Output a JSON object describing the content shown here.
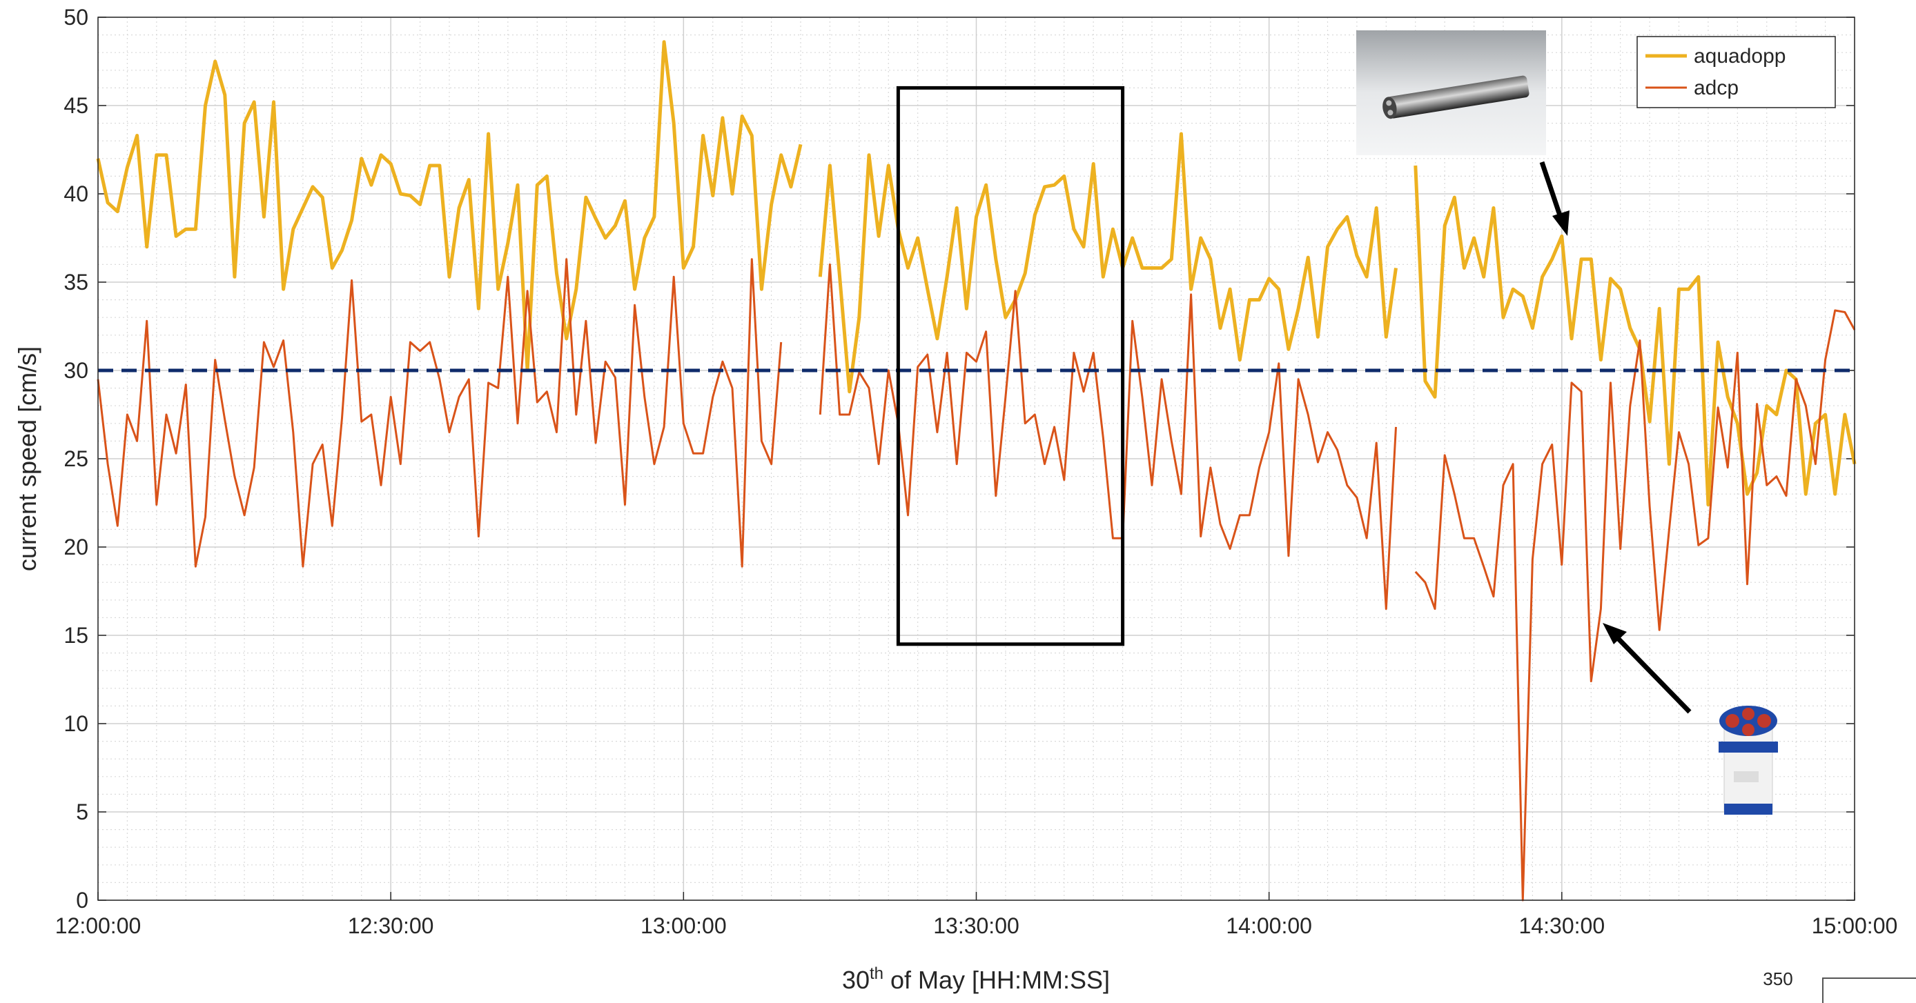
{
  "chart_data": {
    "type": "line",
    "ylabel": "current speed [cm/s]",
    "xlabel": {
      "text": "30",
      "sup": "th",
      "rest": " of May [HH:MM:SS]"
    },
    "xlim": [
      "12:00:00",
      "15:00:00"
    ],
    "xticks": [
      "12:00:00",
      "12:30:00",
      "13:00:00",
      "13:30:00",
      "14:00:00",
      "14:30:00",
      "15:00:00"
    ],
    "ylim": [
      0,
      50
    ],
    "yticks": [
      0,
      5,
      10,
      15,
      20,
      25,
      30,
      35,
      40,
      45,
      50
    ],
    "grid": true,
    "minor_grid": true,
    "legend": "upper right",
    "reference_line": {
      "y": 30,
      "color": "#0f2b6b"
    },
    "highlight": {
      "x": [
        "13:22:00",
        "13:45:00"
      ],
      "y": [
        14.5,
        46
      ]
    },
    "page_number": "350",
    "x": [
      "12:00:00",
      "12:01:00",
      "12:02:00",
      "12:03:00",
      "12:04:00",
      "12:05:00",
      "12:06:00",
      "12:07:00",
      "12:08:00",
      "12:09:00",
      "12:10:00",
      "12:11:00",
      "12:12:00",
      "12:13:00",
      "12:14:00",
      "12:15:00",
      "12:16:00",
      "12:17:00",
      "12:18:00",
      "12:19:00",
      "12:20:00",
      "12:21:00",
      "12:22:00",
      "12:23:00",
      "12:24:00",
      "12:25:00",
      "12:26:00",
      "12:27:00",
      "12:28:00",
      "12:29:00",
      "12:30:00",
      "12:31:00",
      "12:32:00",
      "12:33:00",
      "12:34:00",
      "12:35:00",
      "12:36:00",
      "12:37:00",
      "12:38:00",
      "12:39:00",
      "12:40:00",
      "12:41:00",
      "12:42:00",
      "12:43:00",
      "12:44:00",
      "12:45:00",
      "12:46:00",
      "12:47:00",
      "12:48:00",
      "12:49:00",
      "12:50:00",
      "12:51:00",
      "12:52:00",
      "12:53:00",
      "12:54:00",
      "12:55:00",
      "12:56:00",
      "12:57:00",
      "12:58:00",
      "12:59:00",
      "13:00:00",
      "13:01:00",
      "13:02:00",
      "13:03:00",
      "13:04:00",
      "13:05:00",
      "13:06:00",
      "13:07:00",
      "13:08:00",
      "13:09:00",
      "13:10:00",
      "13:11:00",
      "13:12:00",
      "13:13:00",
      "13:14:00",
      "13:15:00",
      "13:16:00",
      "13:17:00",
      "13:18:00",
      "13:19:00",
      "13:20:00",
      "13:21:00",
      "13:22:00",
      "13:23:00",
      "13:24:00",
      "13:25:00",
      "13:26:00",
      "13:27:00",
      "13:28:00",
      "13:29:00",
      "13:30:00",
      "13:31:00",
      "13:32:00",
      "13:33:00",
      "13:34:00",
      "13:35:00",
      "13:36:00",
      "13:37:00",
      "13:38:00",
      "13:39:00",
      "13:40:00",
      "13:41:00",
      "13:42:00",
      "13:43:00",
      "13:44:00",
      "13:45:00",
      "13:46:00",
      "13:47:00",
      "13:48:00",
      "13:49:00",
      "13:50:00",
      "13:51:00",
      "13:52:00",
      "13:53:00",
      "13:54:00",
      "13:55:00",
      "13:56:00",
      "13:57:00",
      "13:58:00",
      "13:59:00",
      "14:00:00",
      "14:01:00",
      "14:02:00",
      "14:03:00",
      "14:04:00",
      "14:05:00",
      "14:06:00",
      "14:07:00",
      "14:08:00",
      "14:09:00",
      "14:10:00",
      "14:11:00",
      "14:12:00",
      "14:13:00",
      "14:14:00",
      "14:15:00",
      "14:16:00",
      "14:17:00",
      "14:18:00",
      "14:19:00",
      "14:20:00",
      "14:21:00",
      "14:22:00",
      "14:23:00",
      "14:24:00",
      "14:25:00",
      "14:26:00",
      "14:27:00",
      "14:28:00",
      "14:29:00",
      "14:30:00",
      "14:31:00",
      "14:32:00",
      "14:33:00",
      "14:34:00",
      "14:35:00",
      "14:36:00",
      "14:37:00",
      "14:38:00",
      "14:39:00",
      "14:40:00",
      "14:41:00",
      "14:42:00",
      "14:43:00",
      "14:44:00",
      "14:45:00",
      "14:46:00",
      "14:47:00",
      "14:48:00",
      "14:49:00",
      "14:50:00",
      "14:51:00",
      "14:52:00",
      "14:53:00",
      "14:54:00",
      "14:55:00",
      "14:56:00",
      "14:57:00",
      "14:58:00",
      "14:59:00",
      "15:00:00"
    ],
    "series": [
      {
        "name": "aquadopp",
        "color": "#edb120",
        "values": [
          42,
          39.5,
          39,
          41.5,
          43.3,
          37,
          42.2,
          42.2,
          37.6,
          38,
          38,
          45,
          47.5,
          45.6,
          35.3,
          44,
          45.2,
          38.7,
          45.2,
          34.6,
          38,
          39.2,
          40.4,
          39.8,
          35.8,
          36.8,
          38.5,
          42,
          40.5,
          42.2,
          41.7,
          40,
          39.9,
          39.4,
          41.6,
          41.6,
          35.3,
          39.2,
          40.8,
          33.5,
          43.4,
          34.6,
          37.2,
          40.5,
          30,
          40.5,
          41,
          35.5,
          31.8,
          34.6,
          39.8,
          38.6,
          37.5,
          38.2,
          39.6,
          34.6,
          37.5,
          38.7,
          48.6,
          44,
          35.8,
          37,
          43.3,
          39.9,
          44.3,
          40,
          44.4,
          43.3,
          34.6,
          39.4,
          42.2,
          40.4,
          42.8,
          null,
          35.3,
          41.6,
          35.3,
          28.8,
          33,
          42.2,
          37.6,
          41.6,
          38,
          35.8,
          37.5,
          34.6,
          31.8,
          35.3,
          39.2,
          33.5,
          38.7,
          40.5,
          36.3,
          33,
          34,
          35.5,
          38.8,
          40.4,
          40.5,
          41,
          38,
          37,
          41.7,
          35.3,
          38,
          35.8,
          37.5,
          35.8,
          35.8,
          35.8,
          36.3,
          43.4,
          34.6,
          37.5,
          36.3,
          32.4,
          34.6,
          30.6,
          34,
          34,
          35.2,
          34.6,
          31.2,
          33.5,
          36.4,
          31.9,
          37,
          38,
          38.7,
          36.5,
          35.3,
          39.2,
          31.9,
          35.8,
          null,
          41.6,
          29.4,
          28.5,
          38.2,
          39.8,
          35.8,
          37.5,
          35.3,
          39.2,
          33,
          34.6,
          34.2,
          32.4,
          35.3,
          36.3,
          37.6,
          31.8,
          36.3,
          36.3,
          30.6,
          35.2,
          34.6,
          32.4,
          31.2,
          27.1,
          33.5,
          24.7,
          34.6,
          34.6,
          35.3,
          22.4,
          31.6,
          28.5,
          27,
          23,
          24.2,
          28,
          27.5,
          30,
          29.5,
          23,
          27,
          27.5,
          23,
          27.5,
          24.7
        ]
      },
      {
        "name": "adcp",
        "color": "#d95319",
        "values": [
          29.5,
          24.7,
          21.2,
          27.5,
          26,
          32.8,
          22.4,
          27.5,
          25.3,
          29.2,
          18.9,
          21.7,
          30.6,
          27.2,
          24,
          21.8,
          24.5,
          31.6,
          30.2,
          31.7,
          26.5,
          18.9,
          24.7,
          25.8,
          21.2,
          27.3,
          35.1,
          27.1,
          27.5,
          23.5,
          28.5,
          24.7,
          31.6,
          31.1,
          31.6,
          29.5,
          26.5,
          28.5,
          29.5,
          20.6,
          29.3,
          29,
          35.3,
          27,
          34.5,
          28.2,
          28.8,
          26.5,
          36.3,
          27.5,
          32.8,
          25.9,
          30.5,
          29.6,
          22.4,
          33.7,
          28.5,
          24.7,
          26.8,
          35.3,
          27,
          25.3,
          25.3,
          28.5,
          30.5,
          29,
          18.9,
          36.3,
          26,
          24.7,
          31.6,
          null,
          null,
          null,
          27.5,
          36,
          27.5,
          27.5,
          29.9,
          29,
          24.7,
          30,
          27,
          21.8,
          30.2,
          30.9,
          26.5,
          31,
          24.7,
          31,
          30.5,
          32.2,
          22.9,
          28.5,
          34.5,
          27,
          27.5,
          24.7,
          26.8,
          23.8,
          31,
          28.8,
          31,
          26.2,
          20.5,
          20.5,
          32.8,
          28.5,
          23.5,
          29.5,
          26,
          23,
          34.3,
          20.6,
          24.5,
          21.3,
          19.9,
          21.8,
          21.8,
          24.5,
          26.5,
          30.4,
          19.5,
          29.5,
          27.5,
          24.8,
          26.5,
          25.5,
          23.5,
          22.8,
          20.5,
          25.9,
          16.5,
          26.8,
          null,
          18.6,
          18,
          16.5,
          25.2,
          23,
          20.5,
          20.5,
          18.9,
          17.2,
          23.5,
          24.7,
          0,
          19.3,
          24.7,
          25.8,
          19,
          29.3,
          28.8,
          12.4,
          16.5,
          29.3,
          19.9,
          28,
          31.7,
          22.3,
          15.3,
          21,
          26.5,
          24.7,
          20.1,
          20.5,
          27.9,
          24.5,
          31,
          17.9,
          28.1,
          23.5,
          24,
          22.9,
          29.5,
          28,
          24.7,
          30.6,
          33.4,
          33.3,
          32.3
        ]
      }
    ]
  }
}
